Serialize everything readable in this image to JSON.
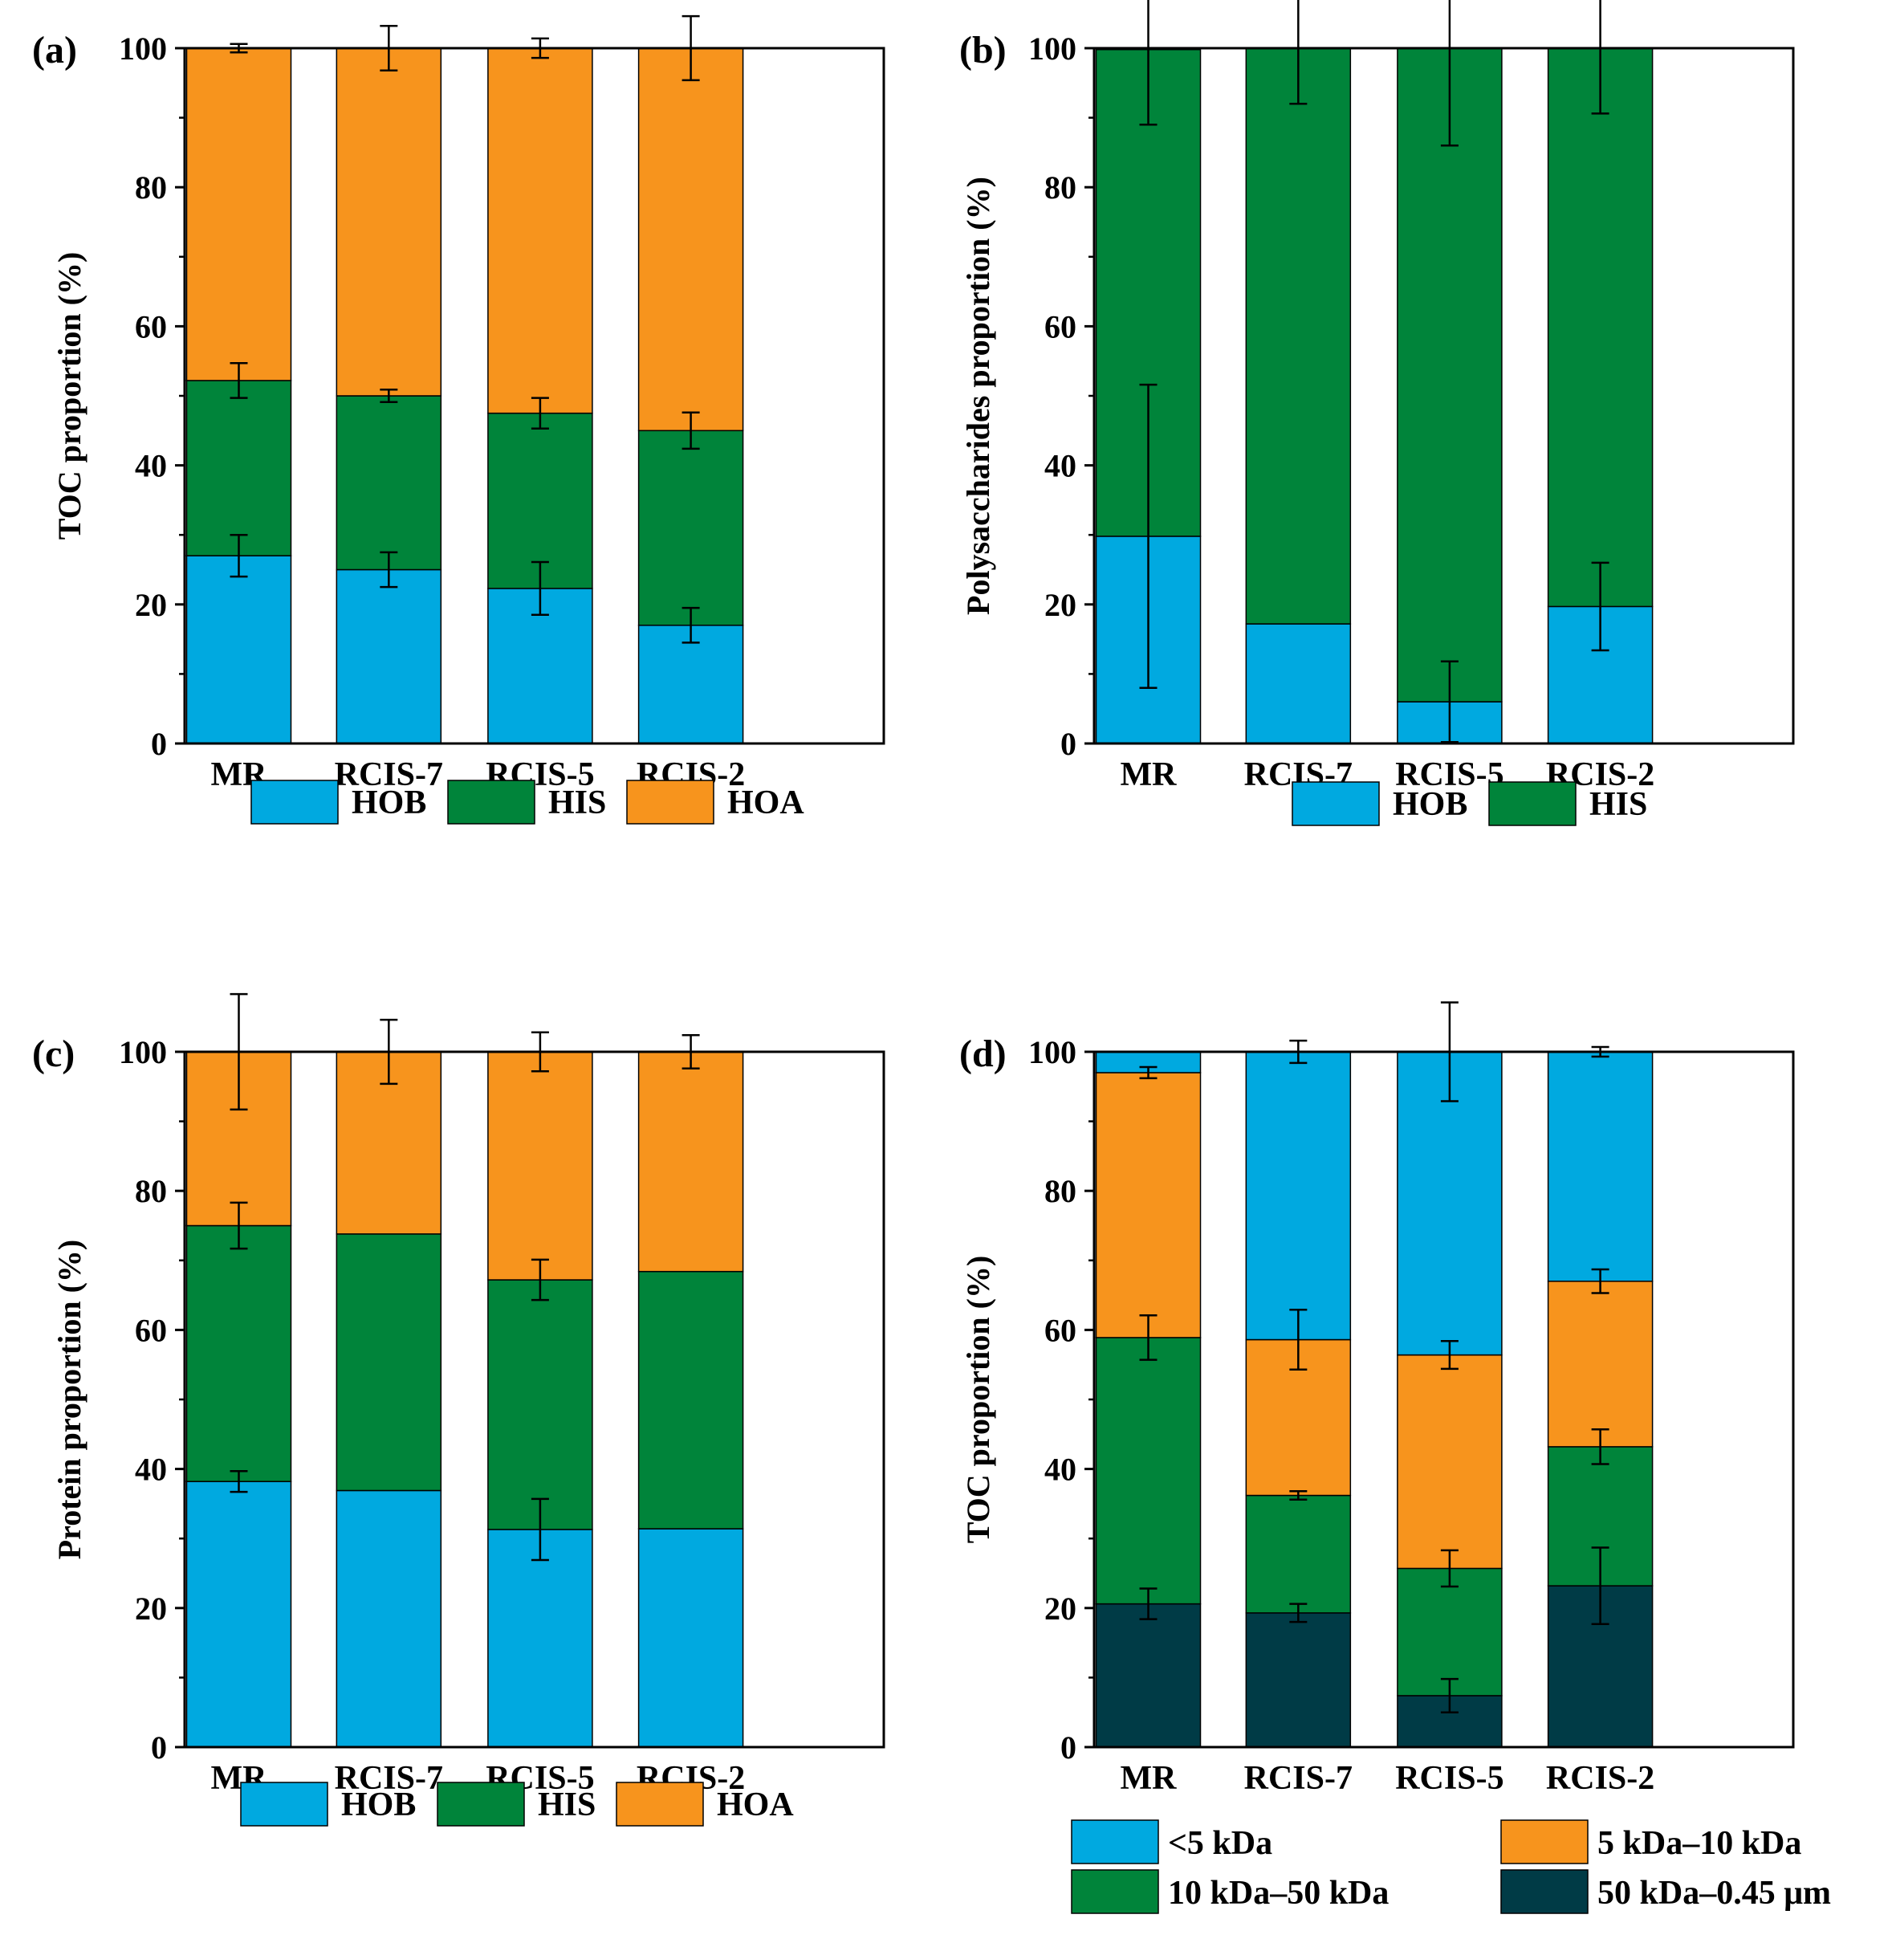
{
  "chart_data": [
    {
      "type": "bar",
      "stacked": true,
      "panel_label": "(a)",
      "ylabel": "TOC proportion (%)",
      "ylim": [
        0,
        100
      ],
      "yticks": [
        0,
        20,
        40,
        60,
        80,
        100
      ],
      "categories": [
        "MR",
        "RCIS-7",
        "RCIS-5",
        "RCIS-2"
      ],
      "legend_placement": "bottom",
      "series": [
        {
          "name": "HOB",
          "color": "#00a9e0",
          "values": [
            27.0,
            25.0,
            22.3,
            17.0
          ],
          "errors": [
            3.0,
            2.5,
            3.8,
            2.5
          ]
        },
        {
          "name": "HIS",
          "color": "#00843a",
          "values": [
            25.2,
            25.0,
            25.2,
            28.0
          ],
          "errors": [
            2.5,
            0.9,
            2.2,
            2.6
          ]
        },
        {
          "name": "HOA",
          "color": "#f7941d",
          "values": [
            47.8,
            50.0,
            52.5,
            55.0
          ],
          "errors": [
            0.6,
            3.2,
            1.4,
            4.6
          ]
        }
      ]
    },
    {
      "type": "bar",
      "stacked": true,
      "panel_label": "(b)",
      "ylabel": "Polysaccharides proportion (%)",
      "ylim": [
        0,
        100
      ],
      "yticks": [
        0,
        20,
        40,
        60,
        80,
        100
      ],
      "categories": [
        "MR",
        "RCIS-7",
        "RCIS-5",
        "RCIS-2"
      ],
      "legend_placement": "bottom",
      "series": [
        {
          "name": "HOB",
          "color": "#00a9e0",
          "values": [
            29.8,
            17.2,
            6.0,
            19.7
          ],
          "errors": [
            21.8,
            0,
            5.8,
            6.3
          ]
        },
        {
          "name": "HIS",
          "color": "#00843a",
          "values": [
            70.0,
            82.8,
            94.0,
            80.3
          ],
          "errors": [
            10.8,
            8.0,
            14.0,
            9.4
          ]
        }
      ]
    },
    {
      "type": "bar",
      "stacked": true,
      "panel_label": "(c)",
      "ylabel": "Protein proportion (%)",
      "ylim": [
        0,
        100
      ],
      "yticks": [
        0,
        20,
        40,
        60,
        80,
        100
      ],
      "categories": [
        "MR",
        "RCIS-7",
        "RCIS-5",
        "RCIS-2"
      ],
      "legend_placement": "bottom",
      "series": [
        {
          "name": "HOB",
          "color": "#00a9e0",
          "values": [
            38.2,
            36.9,
            31.3,
            31.4
          ],
          "errors": [
            1.5,
            0,
            4.4,
            0
          ]
        },
        {
          "name": "HIS",
          "color": "#00843a",
          "values": [
            36.8,
            36.9,
            35.9,
            37.0
          ],
          "errors": [
            3.3,
            0,
            2.9,
            0
          ]
        },
        {
          "name": "HOA",
          "color": "#f7941d",
          "values": [
            25.0,
            26.2,
            32.8,
            31.6
          ],
          "errors": [
            8.3,
            4.6,
            2.8,
            2.4
          ]
        }
      ]
    },
    {
      "type": "bar",
      "stacked": true,
      "panel_label": "(d)",
      "ylabel": "TOC proportion (%)",
      "ylim": [
        0,
        100
      ],
      "yticks": [
        0,
        20,
        40,
        60,
        80,
        100
      ],
      "categories": [
        "MR",
        "RCIS-7",
        "RCIS-5",
        "RCIS-2"
      ],
      "legend_placement": "bottom",
      "series": [
        {
          "name": "50 kDa–0.45 μm",
          "color": "#003b46",
          "values": [
            20.6,
            19.3,
            7.4,
            23.2
          ],
          "errors": [
            2.2,
            1.3,
            2.4,
            5.5
          ]
        },
        {
          "name": "10 kDa–50 kDa",
          "color": "#00843a",
          "values": [
            38.3,
            16.9,
            18.3,
            20.0
          ],
          "errors": [
            3.2,
            0.6,
            2.6,
            2.5
          ]
        },
        {
          "name": "5 kDa–10 kDa",
          "color": "#f7941d",
          "values": [
            38.1,
            22.4,
            30.7,
            23.8
          ],
          "errors": [
            0.8,
            4.3,
            2.0,
            1.7
          ]
        },
        {
          "name": "<5 kDa",
          "color": "#00a9e0",
          "values": [
            3.0,
            41.4,
            43.6,
            33.0
          ],
          "errors": [
            0,
            1.6,
            7.1,
            0.7
          ]
        }
      ],
      "legend_order": [
        "<5 kDa",
        "5 kDa–10 kDa",
        "10 kDa–50 kDa",
        "50 kDa–0.45 μm"
      ]
    }
  ]
}
